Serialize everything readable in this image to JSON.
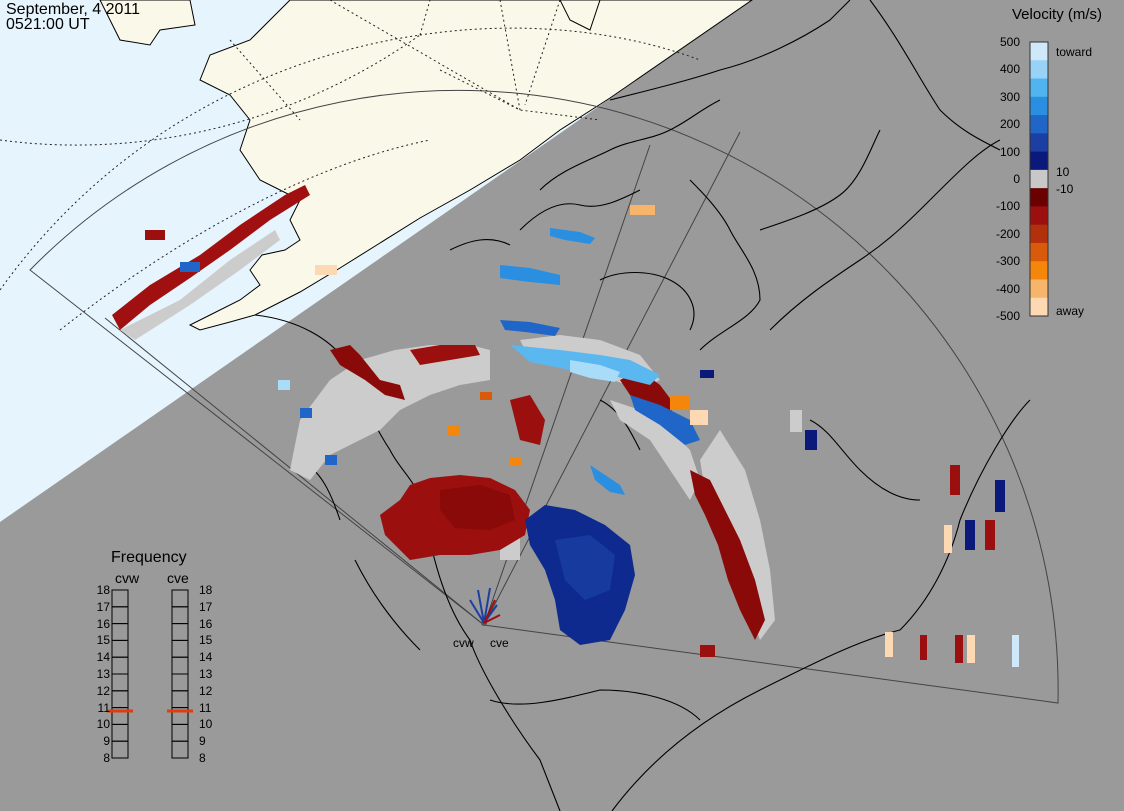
{
  "title": {
    "date": "September, 4 2011",
    "time": "0521:00 UT"
  },
  "colorbar": {
    "title": "Velocity (m/s)",
    "ticks": [
      "500",
      "400",
      "300",
      "200",
      "100",
      "0",
      "-100",
      "-200",
      "-300",
      "-400",
      "-500"
    ],
    "inner_positive": "10",
    "inner_negative": "-10",
    "top_label": "toward",
    "bottom_label": "away",
    "colors_top_to_bottom": [
      "#cfe9fb",
      "#98d3f7",
      "#4fb4ef",
      "#2a8fe0",
      "#1f66c8",
      "#1b3fa3",
      "#0b1a7a",
      "#c8c8c8",
      "#6b0000",
      "#9b0f0f",
      "#b3300c",
      "#d85a0a",
      "#f4860c",
      "#f7b46b",
      "#fcd9b3"
    ]
  },
  "frequency_panel": {
    "title": "Frequency",
    "radars": [
      "cvw",
      "cve"
    ],
    "scale": [
      "18",
      "17",
      "16",
      "15",
      "14",
      "13",
      "12",
      "11",
      "10",
      "9",
      "8"
    ],
    "current_mhz": 10.8,
    "marker_color": "#e03c0c"
  },
  "radar_sites": [
    "cvw",
    "cve"
  ],
  "map_colors": {
    "night": "#9a9a9a",
    "day_ocean": "#e6f5fd",
    "day_land": "#faf8e8",
    "coast": "#000000",
    "ground_scatter": "#cccccc"
  }
}
